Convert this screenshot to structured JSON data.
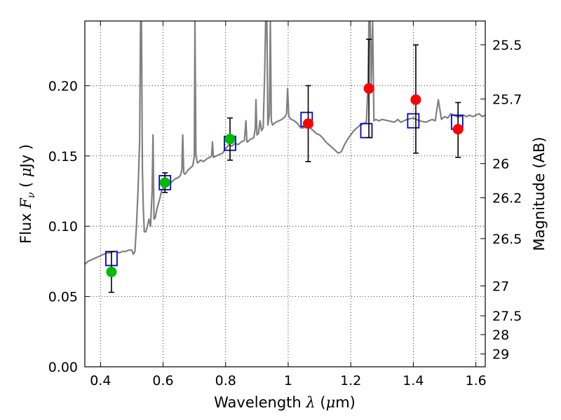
{
  "chart_data": {
    "type": "scatter",
    "xlabel": {
      "prefix": "Wavelength ",
      "symbol": "λ",
      "unit": " (",
      "mu": "μ",
      "unit_end": "m)"
    },
    "ylabel": {
      "prefix": "Flux ",
      "symbol": "F",
      "sub": "ν",
      "mid": "  ( ",
      "mu": "μ",
      "unit": "Jy )"
    },
    "y2label": "Magnitude (AB)",
    "xlim": [
      0.35,
      1.63
    ],
    "ylim": [
      0.0,
      0.246
    ],
    "grid": true,
    "x_ticks": [
      {
        "v": 0.4,
        "label": "0.4"
      },
      {
        "v": 0.6,
        "label": "0.6"
      },
      {
        "v": 0.8,
        "label": "0.8"
      },
      {
        "v": 1.0,
        "label": "1"
      },
      {
        "v": 1.2,
        "label": "1.2"
      },
      {
        "v": 1.4,
        "label": "1.4"
      },
      {
        "v": 1.6,
        "label": "1.6"
      }
    ],
    "y_ticks": [
      {
        "v": 0.0,
        "label": "0.00"
      },
      {
        "v": 0.05,
        "label": "0.05"
      },
      {
        "v": 0.1,
        "label": "0.10"
      },
      {
        "v": 0.15,
        "label": "0.15"
      },
      {
        "v": 0.2,
        "label": "0.20"
      }
    ],
    "y2_ticks": [
      {
        "mag": 25.5,
        "label": "25.5"
      },
      {
        "mag": 25.7,
        "label": "25.7"
      },
      {
        "mag": 26,
        "label": "26"
      },
      {
        "mag": 26.2,
        "label": "26.2"
      },
      {
        "mag": 26.5,
        "label": "26.5"
      },
      {
        "mag": 27,
        "label": "27"
      },
      {
        "mag": 27.5,
        "label": "27.5"
      },
      {
        "mag": 28,
        "label": "28"
      },
      {
        "mag": 29,
        "label": "29"
      }
    ],
    "model_spectrum": {
      "color": "#808080",
      "points": [
        [
          0.35,
          0.073
        ],
        [
          0.36,
          0.075
        ],
        [
          0.37,
          0.076
        ],
        [
          0.38,
          0.077
        ],
        [
          0.39,
          0.078
        ],
        [
          0.4,
          0.079
        ],
        [
          0.41,
          0.08
        ],
        [
          0.42,
          0.081
        ],
        [
          0.43,
          0.081
        ],
        [
          0.44,
          0.082
        ],
        [
          0.45,
          0.082
        ],
        [
          0.46,
          0.081
        ],
        [
          0.47,
          0.082
        ],
        [
          0.48,
          0.082
        ],
        [
          0.49,
          0.083
        ],
        [
          0.5,
          0.083
        ],
        [
          0.505,
          0.08
        ],
        [
          0.51,
          0.082
        ],
        [
          0.515,
          0.1
        ],
        [
          0.52,
          0.125
        ],
        [
          0.525,
          0.16
        ],
        [
          0.528,
          0.245
        ],
        [
          0.531,
          0.246
        ],
        [
          0.534,
          0.14
        ],
        [
          0.537,
          0.112
        ],
        [
          0.54,
          0.096
        ],
        [
          0.545,
          0.096
        ],
        [
          0.55,
          0.1
        ],
        [
          0.555,
          0.105
        ],
        [
          0.56,
          0.1
        ],
        [
          0.565,
          0.125
        ],
        [
          0.568,
          0.165
        ],
        [
          0.571,
          0.105
        ],
        [
          0.575,
          0.106
        ],
        [
          0.58,
          0.112
        ],
        [
          0.585,
          0.116
        ],
        [
          0.59,
          0.12
        ],
        [
          0.595,
          0.125
        ],
        [
          0.6,
          0.127
        ],
        [
          0.605,
          0.129
        ],
        [
          0.61,
          0.13
        ],
        [
          0.615,
          0.131
        ],
        [
          0.62,
          0.13
        ],
        [
          0.625,
          0.131
        ],
        [
          0.63,
          0.132
        ],
        [
          0.635,
          0.133
        ],
        [
          0.64,
          0.134
        ],
        [
          0.645,
          0.134
        ],
        [
          0.65,
          0.135
        ],
        [
          0.655,
          0.136
        ],
        [
          0.66,
          0.14
        ],
        [
          0.663,
          0.165
        ],
        [
          0.666,
          0.138
        ],
        [
          0.67,
          0.137
        ],
        [
          0.68,
          0.14
        ],
        [
          0.69,
          0.142
        ],
        [
          0.695,
          0.143
        ],
        [
          0.7,
          0.15
        ],
        [
          0.702,
          0.246
        ],
        [
          0.705,
          0.15
        ],
        [
          0.71,
          0.145
        ],
        [
          0.72,
          0.147
        ],
        [
          0.73,
          0.146
        ],
        [
          0.74,
          0.148
        ],
        [
          0.75,
          0.149
        ],
        [
          0.755,
          0.15
        ],
        [
          0.758,
          0.16
        ],
        [
          0.761,
          0.149
        ],
        [
          0.77,
          0.15
        ],
        [
          0.78,
          0.151
        ],
        [
          0.79,
          0.152
        ],
        [
          0.8,
          0.155
        ],
        [
          0.81,
          0.158
        ],
        [
          0.82,
          0.157
        ],
        [
          0.83,
          0.159
        ],
        [
          0.84,
          0.158
        ],
        [
          0.85,
          0.16
        ],
        [
          0.86,
          0.161
        ],
        [
          0.865,
          0.175
        ],
        [
          0.868,
          0.16
        ],
        [
          0.87,
          0.16
        ],
        [
          0.88,
          0.162
        ],
        [
          0.89,
          0.163
        ],
        [
          0.895,
          0.17
        ],
        [
          0.897,
          0.19
        ],
        [
          0.9,
          0.165
        ],
        [
          0.905,
          0.166
        ],
        [
          0.91,
          0.175
        ],
        [
          0.915,
          0.168
        ],
        [
          0.92,
          0.17
        ],
        [
          0.925,
          0.21
        ],
        [
          0.928,
          0.246
        ],
        [
          0.932,
          0.246
        ],
        [
          0.935,
          0.172
        ],
        [
          0.94,
          0.18
        ],
        [
          0.943,
          0.246
        ],
        [
          0.946,
          0.175
        ],
        [
          0.95,
          0.172
        ],
        [
          0.96,
          0.174
        ],
        [
          0.97,
          0.175
        ],
        [
          0.98,
          0.176
        ],
        [
          0.99,
          0.178
        ],
        [
          0.995,
          0.18
        ],
        [
          0.998,
          0.198
        ],
        [
          1.002,
          0.178
        ],
        [
          1.01,
          0.176
        ],
        [
          1.02,
          0.175
        ],
        [
          1.03,
          0.173
        ],
        [
          1.04,
          0.17
        ],
        [
          1.05,
          0.17
        ],
        [
          1.06,
          0.172
        ],
        [
          1.07,
          0.17
        ],
        [
          1.08,
          0.168
        ],
        [
          1.09,
          0.166
        ],
        [
          1.1,
          0.165
        ],
        [
          1.11,
          0.163
        ],
        [
          1.12,
          0.16
        ],
        [
          1.13,
          0.158
        ],
        [
          1.14,
          0.156
        ],
        [
          1.15,
          0.154
        ],
        [
          1.16,
          0.152
        ],
        [
          1.17,
          0.153
        ],
        [
          1.18,
          0.158
        ],
        [
          1.19,
          0.162
        ],
        [
          1.2,
          0.165
        ],
        [
          1.21,
          0.168
        ],
        [
          1.22,
          0.17
        ],
        [
          1.23,
          0.172
        ],
        [
          1.24,
          0.173
        ],
        [
          1.25,
          0.174
        ],
        [
          1.255,
          0.2
        ],
        [
          1.258,
          0.246
        ],
        [
          1.262,
          0.246
        ],
        [
          1.265,
          0.2
        ],
        [
          1.27,
          0.246
        ],
        [
          1.274,
          0.175
        ],
        [
          1.28,
          0.176
        ],
        [
          1.29,
          0.175
        ],
        [
          1.3,
          0.176
        ],
        [
          1.32,
          0.175
        ],
        [
          1.34,
          0.174
        ],
        [
          1.35,
          0.176
        ],
        [
          1.36,
          0.174
        ],
        [
          1.38,
          0.176
        ],
        [
          1.4,
          0.177
        ],
        [
          1.42,
          0.175
        ],
        [
          1.44,
          0.174
        ],
        [
          1.46,
          0.176
        ],
        [
          1.47,
          0.175
        ],
        [
          1.48,
          0.19
        ],
        [
          1.49,
          0.176
        ],
        [
          1.5,
          0.178
        ],
        [
          1.51,
          0.177
        ],
        [
          1.52,
          0.18
        ],
        [
          1.53,
          0.179
        ],
        [
          1.54,
          0.178
        ],
        [
          1.55,
          0.178
        ],
        [
          1.56,
          0.179
        ],
        [
          1.57,
          0.178
        ],
        [
          1.58,
          0.179
        ],
        [
          1.59,
          0.178
        ],
        [
          1.6,
          0.179
        ],
        [
          1.61,
          0.18
        ],
        [
          1.62,
          0.178
        ],
        [
          1.63,
          0.179
        ]
      ]
    },
    "model_photometry": {
      "color": "#0000cc",
      "x": [
        0.435,
        0.606,
        0.814,
        1.059,
        1.25,
        1.4,
        1.54
      ],
      "y": [
        0.077,
        0.131,
        0.159,
        0.176,
        0.168,
        0.175,
        0.174
      ]
    },
    "observed_photometry": {
      "color": "#ff0000",
      "errorbar_color": "#000000",
      "points": [
        {
          "x": 0.435,
          "y": 0.0675,
          "lo": 0.053,
          "hi": 0.082,
          "color": "#00bb00"
        },
        {
          "x": 0.606,
          "y": 0.131,
          "lo": 0.124,
          "hi": 0.138,
          "color": "#00bb00"
        },
        {
          "x": 0.814,
          "y": 0.162,
          "lo": 0.147,
          "hi": 0.177,
          "color": "#00bb00"
        },
        {
          "x": 1.064,
          "y": 0.173,
          "lo": 0.146,
          "hi": 0.2,
          "color": "#ff0000"
        },
        {
          "x": 1.258,
          "y": 0.198,
          "lo": 0.163,
          "hi": 0.233,
          "color": "#ff0000"
        },
        {
          "x": 1.408,
          "y": 0.19,
          "lo": 0.152,
          "hi": 0.229,
          "color": "#ff0000"
        },
        {
          "x": 1.543,
          "y": 0.169,
          "lo": 0.149,
          "hi": 0.188,
          "color": "#ff0000"
        }
      ]
    }
  }
}
